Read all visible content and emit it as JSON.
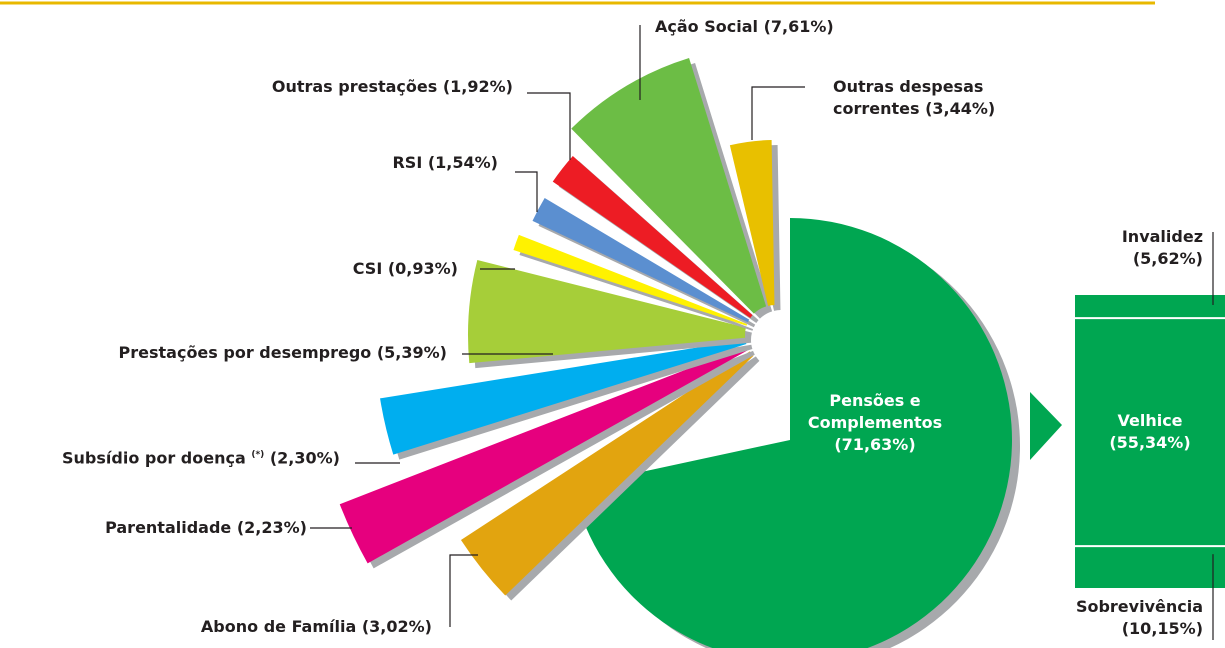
{
  "chart_data": {
    "type": "pie",
    "categories": [
      "Pensões e Complementos",
      "Abono de Família",
      "Parentalidade",
      "Subsídio por doença",
      "Prestações por desemprego",
      "CSI",
      "RSI",
      "Outras prestações",
      "Ação Social",
      "Outras despesas correntes"
    ],
    "values": [
      71.63,
      3.02,
      2.23,
      2.3,
      5.39,
      0.93,
      1.54,
      1.92,
      7.61,
      3.44
    ],
    "value_labels": [
      "(71,63%)",
      "(3,02%)",
      "(2,23%)",
      "(2,30%)",
      "(5,39%)",
      "(0,93%)",
      "(1,54%)",
      "(1,92%)",
      "(7,61%)",
      "(3,44%)"
    ],
    "colors": [
      "#00a651",
      "#e2a40f",
      "#e6007e",
      "#00aeef",
      "#a6ce39",
      "#fff200",
      "#5b8fd0",
      "#ed1c24",
      "#6cbd45",
      "#e8c000"
    ],
    "footnote_marker": "(*)",
    "breakdown": {
      "type": "bar",
      "categories": [
        "Invalidez",
        "Velhice",
        "Sobrevivência"
      ],
      "values": [
        5.62,
        55.34,
        10.15
      ],
      "value_labels": [
        "(5,62%)",
        "(55,34%)",
        "(10,15%)"
      ],
      "color": "#00a651"
    }
  }
}
